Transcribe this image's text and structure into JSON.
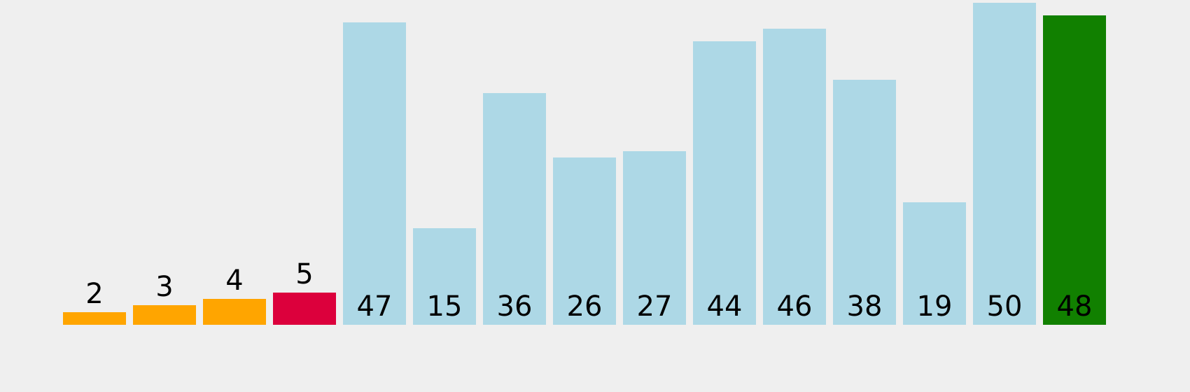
{
  "chart_data": {
    "type": "bar",
    "title": "",
    "xlabel": "",
    "ylabel": "",
    "ylim": [
      0,
      50
    ],
    "values": [
      2,
      3,
      4,
      5,
      47,
      15,
      36,
      26,
      27,
      44,
      46,
      38,
      19,
      50,
      48
    ],
    "states": [
      "sorted",
      "sorted",
      "sorted",
      "current",
      "unsorted",
      "unsorted",
      "unsorted",
      "unsorted",
      "unsorted",
      "unsorted",
      "unsorted",
      "unsorted",
      "unsorted",
      "unsorted",
      "pivot"
    ],
    "colors": {
      "sorted": "#ffa500",
      "current": "#dc003c",
      "unsorted": "#add8e6",
      "pivot": "#118000",
      "background": "#efefef",
      "label": "#000000"
    },
    "grid": false,
    "legend": "none"
  }
}
